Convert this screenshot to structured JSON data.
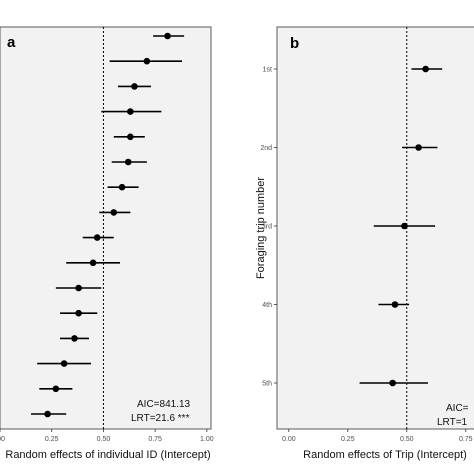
{
  "chart_data": [
    {
      "type": "scatter",
      "style": "forest-plot",
      "panel_label": "a",
      "xlabel": "Random effects of  individual ID (Intercept)",
      "ylabel": "",
      "xlim": [
        0.0,
        1.02
      ],
      "x_ticks": [
        0.0,
        0.25,
        0.5,
        0.75,
        1.0
      ],
      "x_tick_labels": [
        ".00",
        "0.25",
        "0.50",
        "0.75",
        "1.00"
      ],
      "reference_line": 0.5,
      "annotations": [
        "AIC=841.13",
        "LRT=21.6 ***"
      ],
      "points": [
        {
          "estimate": 0.81,
          "low": 0.74,
          "high": 0.89
        },
        {
          "estimate": 0.71,
          "low": 0.53,
          "high": 0.88
        },
        {
          "estimate": 0.65,
          "low": 0.57,
          "high": 0.73
        },
        {
          "estimate": 0.63,
          "low": 0.49,
          "high": 0.78
        },
        {
          "estimate": 0.63,
          "low": 0.55,
          "high": 0.7
        },
        {
          "estimate": 0.62,
          "low": 0.54,
          "high": 0.71
        },
        {
          "estimate": 0.59,
          "low": 0.52,
          "high": 0.67
        },
        {
          "estimate": 0.55,
          "low": 0.48,
          "high": 0.63
        },
        {
          "estimate": 0.47,
          "low": 0.4,
          "high": 0.55
        },
        {
          "estimate": 0.45,
          "low": 0.32,
          "high": 0.58
        },
        {
          "estimate": 0.38,
          "low": 0.27,
          "high": 0.49
        },
        {
          "estimate": 0.38,
          "low": 0.29,
          "high": 0.47
        },
        {
          "estimate": 0.36,
          "low": 0.29,
          "high": 0.43
        },
        {
          "estimate": 0.31,
          "low": 0.18,
          "high": 0.44
        },
        {
          "estimate": 0.27,
          "low": 0.19,
          "high": 0.35
        },
        {
          "estimate": 0.23,
          "low": 0.15,
          "high": 0.32
        }
      ]
    },
    {
      "type": "scatter",
      "style": "forest-plot",
      "panel_label": "b",
      "xlabel": "Random effects of Trip (Intercept)",
      "ylabel": "Foraging trip number",
      "xlim": [
        -0.05,
        0.84
      ],
      "x_ticks": [
        0.0,
        0.25,
        0.5,
        0.75
      ],
      "x_tick_labels": [
        "0.00",
        "0.25",
        "0.50",
        "0.75"
      ],
      "reference_line": 0.5,
      "annotations": [
        "AIC=",
        "LRT=1"
      ],
      "categories": [
        "1st",
        "2nd",
        "3rd",
        "4th",
        "5th"
      ],
      "points": [
        {
          "label": "1st",
          "estimate": 0.58,
          "low": 0.52,
          "high": 0.65
        },
        {
          "label": "2nd",
          "estimate": 0.55,
          "low": 0.48,
          "high": 0.63
        },
        {
          "label": "3rd",
          "estimate": 0.49,
          "low": 0.36,
          "high": 0.62
        },
        {
          "label": "4th",
          "estimate": 0.45,
          "low": 0.38,
          "high": 0.51
        },
        {
          "label": "5th",
          "estimate": 0.44,
          "low": 0.3,
          "high": 0.59
        }
      ]
    }
  ]
}
